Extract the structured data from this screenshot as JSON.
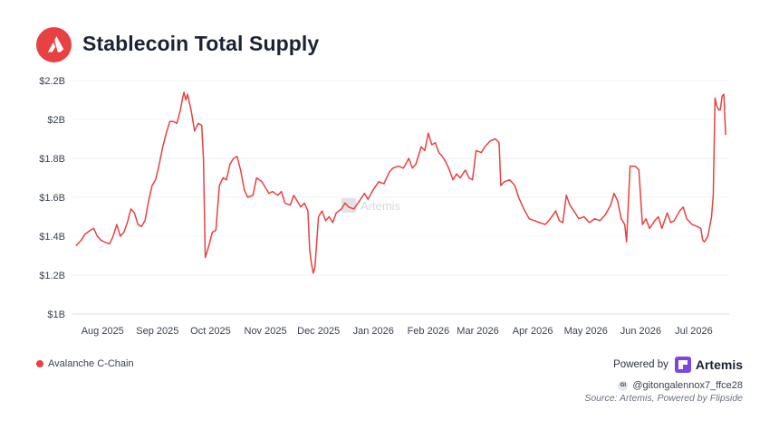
{
  "header": {
    "title": "Stablecoin Total Supply",
    "logo_icon": "avalanche-logo-icon",
    "logo_color": "#e84142"
  },
  "legend": {
    "items": [
      {
        "label": "Avalanche C-Chain",
        "color": "#e84142"
      }
    ]
  },
  "footer": {
    "powered_by_label": "Powered by",
    "brand_name": "Artemis",
    "brand_color": "#7b45e8",
    "handle_badge": "GI",
    "handle": "@gitongalennox7_ffce28",
    "source": "Source: Artemis, Powered by Flipside"
  },
  "watermark": {
    "text": "Artemis"
  },
  "chart_data": {
    "type": "line",
    "y_ticks": [
      "$1B",
      "$1.2B",
      "$1.4B",
      "$1.6B",
      "$1.8B",
      "$2B",
      "$2.2B"
    ],
    "ylim": [
      1.0,
      2.2
    ],
    "xlim": [
      "2025-07-16",
      "2026-07-22"
    ],
    "x_ticks": [
      {
        "date": "2025-08-01",
        "label": "Aug 2025"
      },
      {
        "date": "2025-09-01",
        "label": "Sep 2025"
      },
      {
        "date": "2025-10-01",
        "label": "Oct 2025"
      },
      {
        "date": "2025-11-01",
        "label": "Nov 2025"
      },
      {
        "date": "2025-12-01",
        "label": "Dec 2025"
      },
      {
        "date": "2026-01-01",
        "label": "Jan 2026"
      },
      {
        "date": "2026-02-01",
        "label": "Feb 2026"
      },
      {
        "date": "2026-03-01",
        "label": "Mar 2026"
      },
      {
        "date": "2026-04-01",
        "label": "Apr 2026"
      },
      {
        "date": "2026-05-01",
        "label": "May 2026"
      },
      {
        "date": "2026-06-01",
        "label": "Jun 2026"
      },
      {
        "date": "2026-07-01",
        "label": "Jul 2026"
      }
    ],
    "grid": "horizontal",
    "legend_position": "bottom-left",
    "series": [
      {
        "name": "Avalanche C-Chain",
        "color": "#e84142",
        "points": [
          [
            "2025-07-18",
            1.35
          ],
          [
            "2025-07-21",
            1.38
          ],
          [
            "2025-07-23",
            1.41
          ],
          [
            "2025-07-26",
            1.43
          ],
          [
            "2025-07-28",
            1.44
          ],
          [
            "2025-07-30",
            1.4
          ],
          [
            "2025-08-01",
            1.38
          ],
          [
            "2025-08-03",
            1.37
          ],
          [
            "2025-08-06",
            1.36
          ],
          [
            "2025-08-08",
            1.4
          ],
          [
            "2025-08-10",
            1.46
          ],
          [
            "2025-08-12",
            1.4
          ],
          [
            "2025-08-14",
            1.42
          ],
          [
            "2025-08-16",
            1.47
          ],
          [
            "2025-08-18",
            1.54
          ],
          [
            "2025-08-20",
            1.52
          ],
          [
            "2025-08-22",
            1.46
          ],
          [
            "2025-08-24",
            1.45
          ],
          [
            "2025-08-26",
            1.48
          ],
          [
            "2025-08-28",
            1.58
          ],
          [
            "2025-08-30",
            1.66
          ],
          [
            "2025-09-01",
            1.69
          ],
          [
            "2025-09-03",
            1.77
          ],
          [
            "2025-09-05",
            1.86
          ],
          [
            "2025-09-07",
            1.93
          ],
          [
            "2025-09-09",
            1.99
          ],
          [
            "2025-09-11",
            1.99
          ],
          [
            "2025-09-13",
            1.98
          ],
          [
            "2025-09-15",
            2.05
          ],
          [
            "2025-09-16",
            2.1
          ],
          [
            "2025-09-17",
            2.14
          ],
          [
            "2025-09-18",
            2.1
          ],
          [
            "2025-09-19",
            2.13
          ],
          [
            "2025-09-21",
            2.05
          ],
          [
            "2025-09-23",
            1.94
          ],
          [
            "2025-09-25",
            1.98
          ],
          [
            "2025-09-27",
            1.97
          ],
          [
            "2025-09-28",
            1.8
          ],
          [
            "2025-09-29",
            1.29
          ],
          [
            "2025-10-01",
            1.35
          ],
          [
            "2025-10-03",
            1.42
          ],
          [
            "2025-10-05",
            1.43
          ],
          [
            "2025-10-07",
            1.66
          ],
          [
            "2025-10-09",
            1.7
          ],
          [
            "2025-10-11",
            1.69
          ],
          [
            "2025-10-13",
            1.77
          ],
          [
            "2025-10-15",
            1.8
          ],
          [
            "2025-10-17",
            1.81
          ],
          [
            "2025-10-19",
            1.74
          ],
          [
            "2025-10-21",
            1.64
          ],
          [
            "2025-10-23",
            1.6
          ],
          [
            "2025-10-26",
            1.61
          ],
          [
            "2025-10-28",
            1.7
          ],
          [
            "2025-10-31",
            1.68
          ],
          [
            "2025-11-02",
            1.65
          ],
          [
            "2025-11-04",
            1.62
          ],
          [
            "2025-11-06",
            1.63
          ],
          [
            "2025-11-09",
            1.61
          ],
          [
            "2025-11-11",
            1.63
          ],
          [
            "2025-11-13",
            1.57
          ],
          [
            "2025-11-16",
            1.56
          ],
          [
            "2025-11-18",
            1.61
          ],
          [
            "2025-11-20",
            1.58
          ],
          [
            "2025-11-22",
            1.55
          ],
          [
            "2025-11-24",
            1.57
          ],
          [
            "2025-11-26",
            1.53
          ],
          [
            "2025-11-27",
            1.33
          ],
          [
            "2025-11-28",
            1.26
          ],
          [
            "2025-11-29",
            1.21
          ],
          [
            "2025-11-30",
            1.24
          ],
          [
            "2025-12-02",
            1.5
          ],
          [
            "2025-12-04",
            1.53
          ],
          [
            "2025-12-06",
            1.48
          ],
          [
            "2025-12-08",
            1.5
          ],
          [
            "2025-12-10",
            1.47
          ],
          [
            "2025-12-12",
            1.52
          ],
          [
            "2025-12-15",
            1.54
          ],
          [
            "2025-12-17",
            1.57
          ],
          [
            "2025-12-19",
            1.55
          ],
          [
            "2025-12-22",
            1.54
          ],
          [
            "2025-12-25",
            1.58
          ],
          [
            "2025-12-28",
            1.62
          ],
          [
            "2025-12-30",
            1.59
          ],
          [
            "2026-01-02",
            1.64
          ],
          [
            "2026-01-05",
            1.68
          ],
          [
            "2026-01-08",
            1.67
          ],
          [
            "2026-01-11",
            1.73
          ],
          [
            "2026-01-13",
            1.75
          ],
          [
            "2026-01-16",
            1.76
          ],
          [
            "2026-01-19",
            1.75
          ],
          [
            "2026-01-22",
            1.8
          ],
          [
            "2026-01-24",
            1.75
          ],
          [
            "2026-01-26",
            1.77
          ],
          [
            "2026-01-29",
            1.86
          ],
          [
            "2026-01-31",
            1.84
          ],
          [
            "2026-02-02",
            1.93
          ],
          [
            "2026-02-04",
            1.87
          ],
          [
            "2026-02-06",
            1.88
          ],
          [
            "2026-02-08",
            1.83
          ],
          [
            "2026-02-10",
            1.81
          ],
          [
            "2026-02-12",
            1.78
          ],
          [
            "2026-02-14",
            1.74
          ],
          [
            "2026-02-16",
            1.69
          ],
          [
            "2026-02-18",
            1.72
          ],
          [
            "2026-02-20",
            1.7
          ],
          [
            "2026-02-23",
            1.74
          ],
          [
            "2026-02-25",
            1.7
          ],
          [
            "2026-02-27",
            1.69
          ],
          [
            "2026-03-01",
            1.84
          ],
          [
            "2026-03-04",
            1.83
          ],
          [
            "2026-03-06",
            1.86
          ],
          [
            "2026-03-09",
            1.89
          ],
          [
            "2026-03-12",
            1.9
          ],
          [
            "2026-03-14",
            1.88
          ],
          [
            "2026-03-15",
            1.66
          ],
          [
            "2026-03-17",
            1.68
          ],
          [
            "2026-03-20",
            1.69
          ],
          [
            "2026-03-23",
            1.66
          ],
          [
            "2026-03-25",
            1.6
          ],
          [
            "2026-03-28",
            1.54
          ],
          [
            "2026-03-31",
            1.49
          ],
          [
            "2026-04-03",
            1.48
          ],
          [
            "2026-04-06",
            1.47
          ],
          [
            "2026-04-09",
            1.46
          ],
          [
            "2026-04-12",
            1.49
          ],
          [
            "2026-04-15",
            1.53
          ],
          [
            "2026-04-17",
            1.48
          ],
          [
            "2026-04-19",
            1.47
          ],
          [
            "2026-04-21",
            1.61
          ],
          [
            "2026-04-23",
            1.56
          ],
          [
            "2026-04-26",
            1.52
          ],
          [
            "2026-04-28",
            1.49
          ],
          [
            "2026-05-01",
            1.5
          ],
          [
            "2026-05-04",
            1.47
          ],
          [
            "2026-05-07",
            1.49
          ],
          [
            "2026-05-10",
            1.48
          ],
          [
            "2026-05-13",
            1.51
          ],
          [
            "2026-05-16",
            1.56
          ],
          [
            "2026-05-18",
            1.62
          ],
          [
            "2026-05-20",
            1.58
          ],
          [
            "2026-05-22",
            1.49
          ],
          [
            "2026-05-24",
            1.46
          ],
          [
            "2026-05-25",
            1.37
          ],
          [
            "2026-05-27",
            1.76
          ],
          [
            "2026-05-30",
            1.76
          ],
          [
            "2026-06-01",
            1.74
          ],
          [
            "2026-06-03",
            1.46
          ],
          [
            "2026-06-05",
            1.49
          ],
          [
            "2026-06-07",
            1.44
          ],
          [
            "2026-06-10",
            1.48
          ],
          [
            "2026-06-12",
            1.5
          ],
          [
            "2026-06-14",
            1.44
          ],
          [
            "2026-06-17",
            1.52
          ],
          [
            "2026-06-19",
            1.47
          ],
          [
            "2026-06-21",
            1.48
          ],
          [
            "2026-06-24",
            1.53
          ],
          [
            "2026-06-26",
            1.55
          ],
          [
            "2026-06-28",
            1.49
          ],
          [
            "2026-07-01",
            1.46
          ],
          [
            "2026-07-04",
            1.45
          ],
          [
            "2026-07-06",
            1.44
          ],
          [
            "2026-07-07",
            1.38
          ],
          [
            "2026-07-08",
            1.37
          ],
          [
            "2026-07-10",
            1.4
          ],
          [
            "2026-07-12",
            1.5
          ],
          [
            "2026-07-13",
            1.61
          ],
          [
            "2026-07-14",
            2.11
          ],
          [
            "2026-07-15",
            2.07
          ],
          [
            "2026-07-16",
            2.05
          ],
          [
            "2026-07-17",
            2.05
          ],
          [
            "2026-07-18",
            2.12
          ],
          [
            "2026-07-19",
            2.13
          ],
          [
            "2026-07-20",
            1.92
          ]
        ]
      }
    ]
  }
}
